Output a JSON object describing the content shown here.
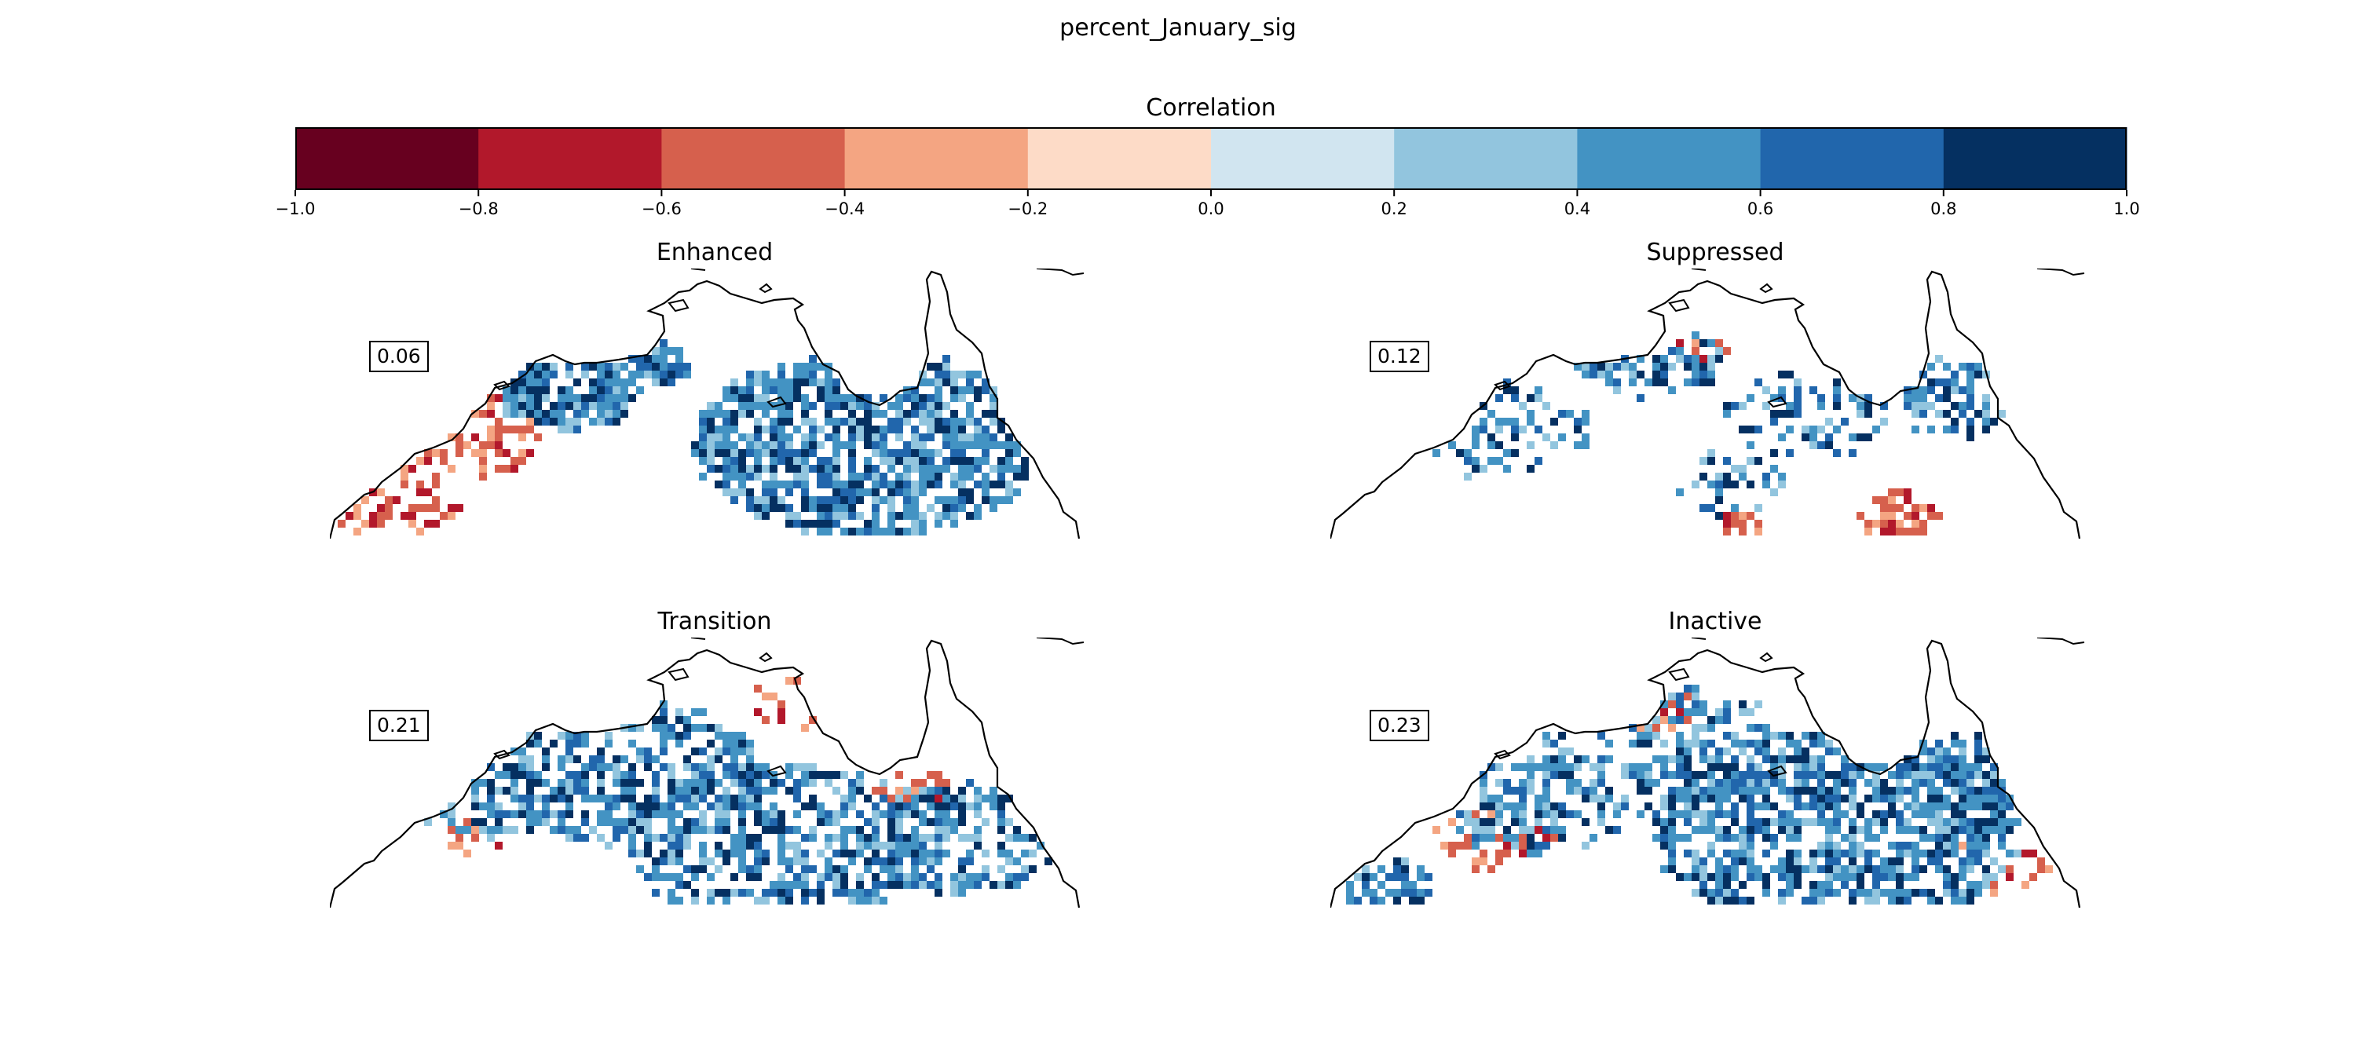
{
  "figure": {
    "title": "percent_January_sig"
  },
  "colorbar": {
    "title": "Correlation",
    "bins": [
      {
        "from": -1.0,
        "to": -0.8,
        "color": "#67001f"
      },
      {
        "from": -0.8,
        "to": -0.6,
        "color": "#b2182b"
      },
      {
        "from": -0.6,
        "to": -0.4,
        "color": "#d6604d"
      },
      {
        "from": -0.4,
        "to": -0.2,
        "color": "#f4a582"
      },
      {
        "from": -0.2,
        "to": 0.0,
        "color": "#fddbc7"
      },
      {
        "from": 0.0,
        "to": 0.2,
        "color": "#d1e5f0"
      },
      {
        "from": 0.2,
        "to": 0.4,
        "color": "#92c5de"
      },
      {
        "from": 0.4,
        "to": 0.6,
        "color": "#4393c3"
      },
      {
        "from": 0.6,
        "to": 0.8,
        "color": "#2166ac"
      },
      {
        "from": 0.8,
        "to": 1.0,
        "color": "#053061"
      }
    ],
    "ticks": [
      "−1.0",
      "−0.8",
      "−0.6",
      "−0.4",
      "−0.2",
      "0.0",
      "0.2",
      "0.4",
      "0.6",
      "0.8",
      "1.0"
    ]
  },
  "panels": [
    {
      "title": "Enhanced",
      "value": "0.06"
    },
    {
      "title": "Suppressed",
      "value": "0.12"
    },
    {
      "title": "Transition",
      "value": "0.21"
    },
    {
      "title": "Inactive",
      "value": "0.23"
    }
  ]
}
